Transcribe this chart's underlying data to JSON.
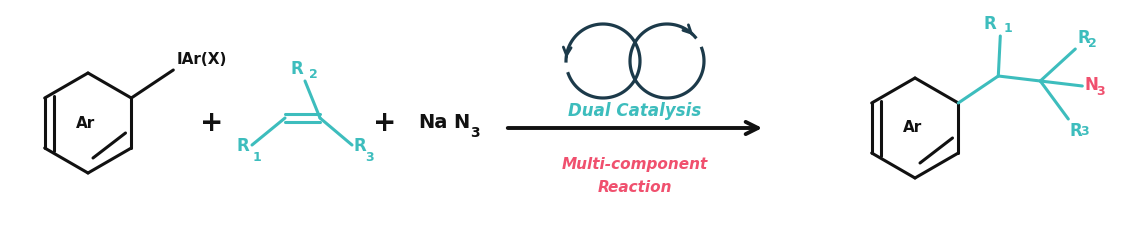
{
  "bg_color": "#ffffff",
  "teal_color": "#3DBDBD",
  "red_color": "#F0506E",
  "dark_color": "#1C3A4A",
  "black_color": "#111111",
  "dual_catalysis_text": "Dual Catalysis",
  "multicomponent_text1": "Multi-component",
  "multicomponent_text2": "Reaction",
  "figsize": [
    11.48,
    2.46
  ],
  "dpi": 100
}
